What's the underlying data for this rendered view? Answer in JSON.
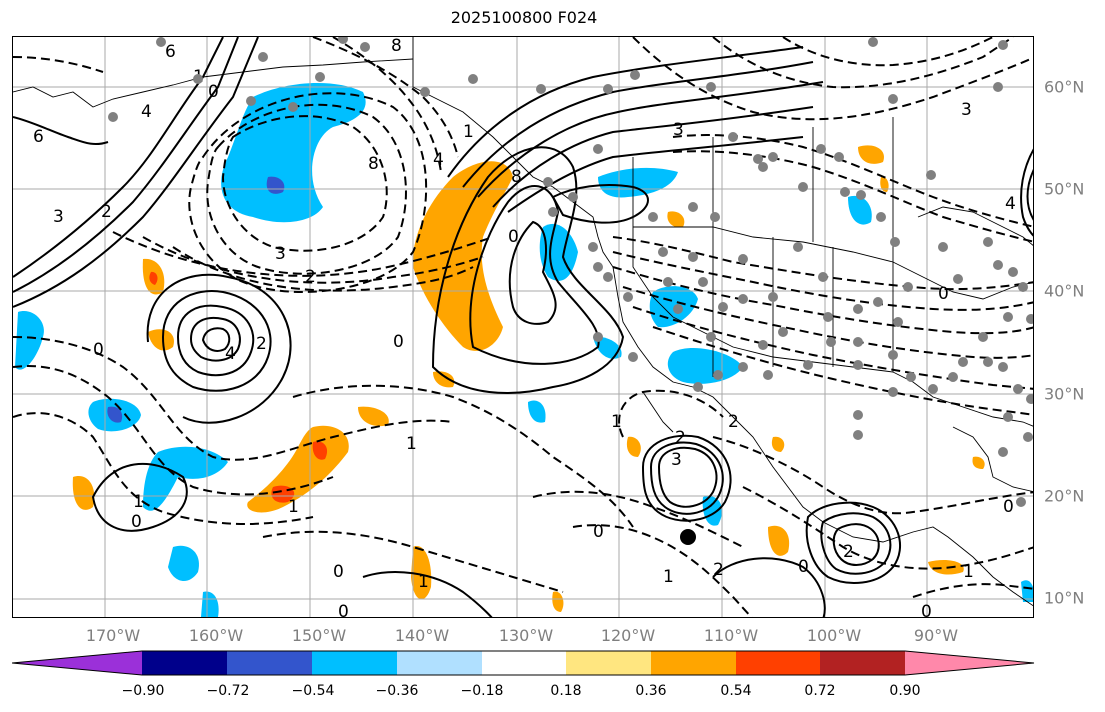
{
  "title": "2025100800 F024",
  "lon_labels": [
    "170°W",
    "160°W",
    "150°W",
    "140°W",
    "130°W",
    "120°W",
    "110°W",
    "100°W",
    "90°W"
  ],
  "lat_labels": [
    "60°N",
    "50°N",
    "40°N",
    "30°N",
    "20°N",
    "10°N"
  ],
  "colorbar": {
    "tick_labels": [
      "−0.90",
      "−0.72",
      "−0.54",
      "−0.36",
      "−0.18",
      "0.18",
      "0.36",
      "0.54",
      "0.72",
      "0.90"
    ],
    "colors": [
      "#9b30d9",
      "#00008b",
      "#3355cc",
      "#00bfff",
      "#b0e0ff",
      "#ffffff",
      "#ffe680",
      "#ffa500",
      "#ff4000",
      "#b22222",
      "#ff88aa"
    ]
  },
  "contour_labels": [
    "8",
    "6",
    "4",
    "6",
    "3",
    "2",
    "1",
    "0",
    "8",
    "3",
    "2",
    "0",
    "4",
    "8",
    "0",
    "1",
    "0",
    "2",
    "4",
    "3",
    "3",
    "4",
    "0",
    "1",
    "1",
    "1",
    "0",
    "0",
    "1",
    "3",
    "2",
    "0",
    "1",
    "1",
    "2",
    "2",
    "0",
    "0",
    "1",
    "2",
    "0",
    "0"
  ]
}
